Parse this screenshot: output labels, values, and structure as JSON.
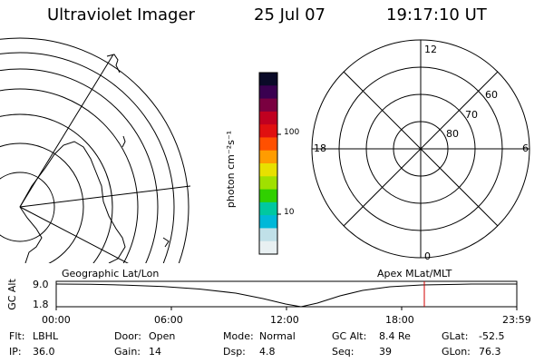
{
  "header": {
    "title": "Ultraviolet Imager",
    "date": "25 Jul 07",
    "time": "19:17:10 UT"
  },
  "polar": {
    "mlt_labels": {
      "top": "12",
      "left": "18",
      "right": "6",
      "bottom": "0"
    },
    "lat_labels": [
      "60",
      "70",
      "80"
    ]
  },
  "colorbar": {
    "unit_label": "photon cm⁻²s⁻¹",
    "ticks": [
      "100",
      "10"
    ],
    "colors": [
      "#0a0a28",
      "#3a0050",
      "#7a0040",
      "#c00020",
      "#e01010",
      "#ff5000",
      "#ff9c00",
      "#e8e000",
      "#a0e000",
      "#30d000",
      "#00c8a0",
      "#00b8d8",
      "#c0e0e8",
      "#e8f0f2"
    ]
  },
  "timeline": {
    "axis_title": "GC Alt",
    "y_ticks": [
      "9.0",
      "1.8"
    ],
    "left_caption": "Geographic Lat/Lon",
    "right_caption": "Apex MLat/MLT",
    "x_ticks": [
      "00:00",
      "06:00",
      "12:00",
      "18:00",
      "23:59"
    ],
    "marker_color": "#d00000"
  },
  "footer": {
    "row1": [
      {
        "label": "Flt:",
        "value": "LBHL"
      },
      {
        "label": "Door:",
        "value": "Open"
      },
      {
        "label": "Mode:",
        "value": "Normal"
      },
      {
        "label": "GC Alt:",
        "value": "8.4 Re"
      },
      {
        "label": "GLat:",
        "value": "-52.5"
      }
    ],
    "row2": [
      {
        "label": "IP:",
        "value": "36.0"
      },
      {
        "label": "Gain:",
        "value": "14"
      },
      {
        "label": "Dsp:",
        "value": "4.8"
      },
      {
        "label": "Seq:",
        "value": "39"
      },
      {
        "label": "GLon:",
        "value": "76.3"
      }
    ]
  }
}
